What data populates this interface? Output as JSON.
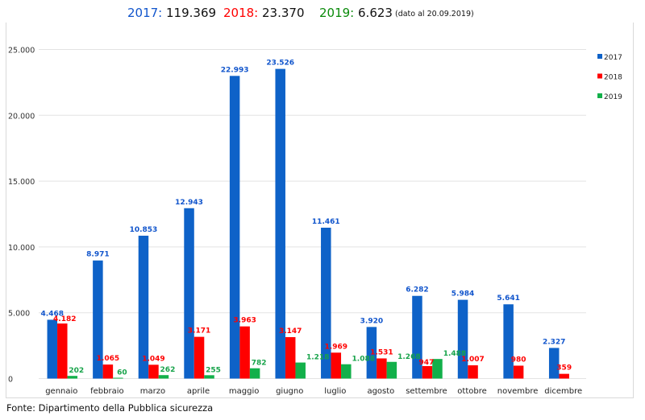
{
  "header": {
    "totals": [
      {
        "year": "2017:",
        "value": "119.369",
        "color": "#1155cc"
      },
      {
        "year": "2018:",
        "value": "23.370",
        "color": "#ff0000"
      },
      {
        "year": "2019:",
        "value": "6.623",
        "color": "#0a8a0a"
      }
    ],
    "note": "(dato al 20.09.2019)"
  },
  "source": "Fonte: Dipartimento della Pubblica sicurezza",
  "colors": {
    "2017": "#0e62c8",
    "2018": "#ff0000",
    "2019": "#12b04a",
    "grid": "#e3e3e3"
  },
  "chart_data": {
    "type": "bar",
    "title": "2017: 119.369  2018: 23.370  2019: 6.623 (dato al 20.09.2019)",
    "xlabel": "",
    "ylabel": "",
    "ylim": [
      0,
      25000
    ],
    "yticks": [
      0,
      5000,
      10000,
      15000,
      20000,
      25000
    ],
    "ytick_labels": [
      "0",
      "5.000",
      "10.000",
      "15.000",
      "20.000",
      "25.000"
    ],
    "grid": true,
    "legend_position": "right",
    "categories": [
      "gennaio",
      "febbraio",
      "marzo",
      "aprile",
      "maggio",
      "giugno",
      "luglio",
      "agosto",
      "settembre",
      "ottobre",
      "novembre",
      "dicembre"
    ],
    "series": [
      {
        "name": "2017",
        "color": "#0e62c8",
        "label_color": "#1155cc",
        "values": [
          4468,
          8971,
          10853,
          12943,
          22993,
          23526,
          11461,
          3920,
          6282,
          5984,
          5641,
          2327
        ],
        "labels": [
          "4.468",
          "8.971",
          "10.853",
          "12.943",
          "22.993",
          "23.526",
          "11.461",
          "3.920",
          "6.282",
          "5.984",
          "5.641",
          "2.327"
        ]
      },
      {
        "name": "2018",
        "color": "#ff0000",
        "label_color": "#ff0000",
        "values": [
          4182,
          1065,
          1049,
          3171,
          3963,
          3147,
          1969,
          1531,
          947,
          1007,
          980,
          359
        ],
        "labels": [
          "4.182",
          "1.065",
          "1.049",
          "3.171",
          "3.963",
          "3.147",
          "1.969",
          "1.531",
          "947",
          "1.007",
          "980",
          "359"
        ]
      },
      {
        "name": "2019",
        "color": "#12b04a",
        "label_color": "#17a34a",
        "values": [
          202,
          60,
          262,
          255,
          782,
          1218,
          1088,
          1268,
          1488,
          null,
          null,
          null
        ],
        "labels": [
          "202",
          "60",
          "262",
          "255",
          "782",
          "1.218",
          "1.088",
          "1.268",
          "1.488",
          null,
          null,
          null
        ]
      }
    ]
  }
}
